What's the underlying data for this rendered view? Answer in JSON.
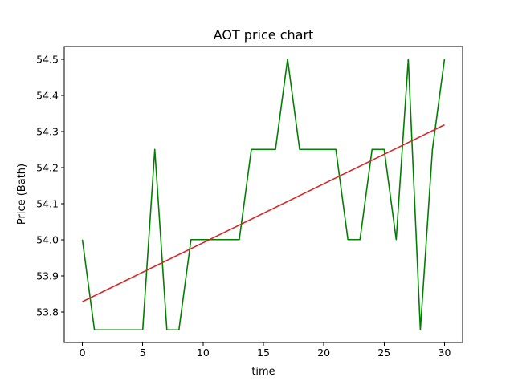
{
  "chart_data": {
    "type": "line",
    "title": "AOT price chart",
    "xlabel": "time",
    "ylabel": "Price (Bath)",
    "xlim": [
      -1.5,
      31.5
    ],
    "ylim": [
      53.715,
      54.535
    ],
    "xticks": [
      0,
      5,
      10,
      15,
      20,
      25,
      30
    ],
    "yticks": [
      53.8,
      53.9,
      54.0,
      54.1,
      54.2,
      54.3,
      54.4,
      54.5
    ],
    "ytick_labels": [
      "53.8",
      "53.9",
      "54.0",
      "54.1",
      "54.2",
      "54.3",
      "54.4",
      "54.5"
    ],
    "grid": false,
    "series": [
      {
        "color": "#008000",
        "x": [
          0,
          1,
          2,
          3,
          4,
          5,
          6,
          7,
          8,
          9,
          10,
          11,
          12,
          13,
          14,
          15,
          16,
          17,
          18,
          19,
          20,
          21,
          22,
          23,
          24,
          25,
          26,
          27,
          28,
          29,
          30
        ],
        "values": [
          54.0,
          53.75,
          53.75,
          53.75,
          53.75,
          53.75,
          54.25,
          53.75,
          53.75,
          54.0,
          54.0,
          54.0,
          54.0,
          54.0,
          54.25,
          54.25,
          54.25,
          54.5,
          54.25,
          54.25,
          54.25,
          54.25,
          54.0,
          54.0,
          54.25,
          54.25,
          54.0,
          54.5,
          53.75,
          54.25,
          54.5
        ]
      },
      {
        "color": "#d62728",
        "x": [
          0,
          30
        ],
        "values": [
          53.828,
          54.318
        ]
      }
    ]
  }
}
